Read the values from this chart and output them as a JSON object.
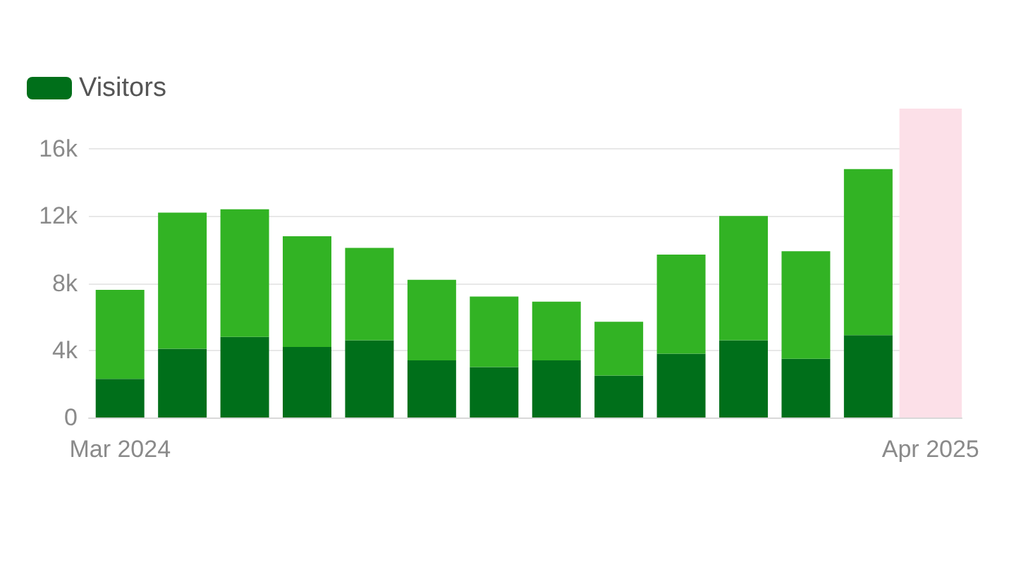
{
  "chart_data": {
    "type": "bar",
    "stacked": true,
    "categories": [
      "Mar 2024",
      null,
      null,
      null,
      null,
      null,
      null,
      null,
      null,
      null,
      null,
      null,
      null,
      "Apr 2025"
    ],
    "series": [
      {
        "name": "Visitors",
        "color": "#006f1a",
        "values": [
          2300,
          4100,
          4800,
          4200,
          4600,
          3400,
          3000,
          3400,
          2500,
          3800,
          4600,
          3500,
          4900,
          0
        ]
      },
      {
        "color": "#32b324",
        "values": [
          5300,
          8100,
          7600,
          6600,
          5500,
          4800,
          4200,
          3500,
          3200,
          5900,
          7400,
          6400,
          9900,
          0
        ]
      }
    ],
    "ylim": [
      0,
      18400
    ],
    "yticks": [
      0,
      {
        "value": 4000,
        "label": "4k"
      },
      {
        "value": 8000,
        "label": "8k"
      },
      {
        "value": 12000,
        "label": "12k"
      },
      {
        "value": 16000,
        "label": "16k"
      }
    ],
    "bands": [
      {
        "axis": "x",
        "from": "Apr 2025",
        "to": "Apr 2025",
        "color": "#fce0e8"
      }
    ],
    "grid": "y",
    "legend": "top left"
  }
}
